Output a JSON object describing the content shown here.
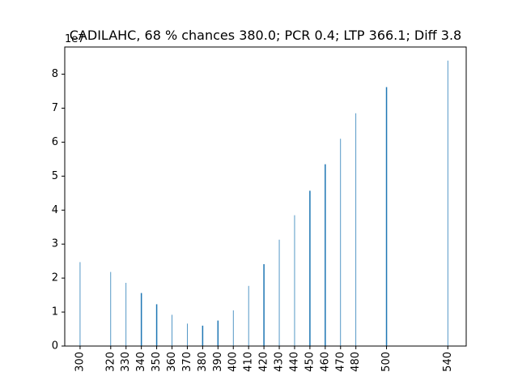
{
  "chart_data": {
    "type": "bar",
    "title": "CADILAHC, 68 % chances 380.0; PCR 0.4; LTP 366.1; Diff 3.8",
    "xlabel": "",
    "ylabel": "",
    "y_offset_label": "1e7",
    "ylim": [
      0,
      88000000
    ],
    "xlim": [
      290,
      552
    ],
    "x_ticks": [
      300,
      320,
      330,
      340,
      350,
      360,
      370,
      380,
      390,
      400,
      410,
      420,
      430,
      440,
      450,
      460,
      470,
      480,
      500,
      540
    ],
    "x_tick_labels": [
      "300",
      "320",
      "330",
      "340",
      "350",
      "360",
      "370",
      "380",
      "390",
      "400",
      "410",
      "420",
      "430",
      "440",
      "450",
      "460",
      "470",
      "480",
      "500",
      "540"
    ],
    "y_ticks": [
      0,
      10000000,
      20000000,
      30000000,
      40000000,
      50000000,
      60000000,
      70000000,
      80000000
    ],
    "y_tick_labels": [
      "0",
      "1",
      "2",
      "3",
      "4",
      "5",
      "6",
      "7",
      "8"
    ],
    "bar_color": "#1f77b4",
    "grid": false,
    "series": [
      {
        "x": [
          300,
          320,
          330,
          340,
          350,
          360,
          370,
          380,
          390,
          400,
          410,
          420,
          430,
          440,
          450,
          460,
          470,
          480,
          500,
          540
        ],
        "values": [
          24700000,
          21800000,
          18600000,
          15600000,
          12300000,
          9200000,
          6600000,
          6000000,
          7500000,
          10500000,
          17700000,
          24100000,
          31300000,
          38500000,
          45700000,
          53500000,
          61000000,
          68500000,
          76200000,
          84000000
        ],
        "widths": [
          0.4,
          0.4,
          0.4,
          0.8,
          0.8,
          0.4,
          0.4,
          0.8,
          0.8,
          0.4,
          0.4,
          0.8,
          0.4,
          0.4,
          0.8,
          0.8,
          0.4,
          0.4,
          0.8,
          0.4
        ]
      }
    ]
  }
}
